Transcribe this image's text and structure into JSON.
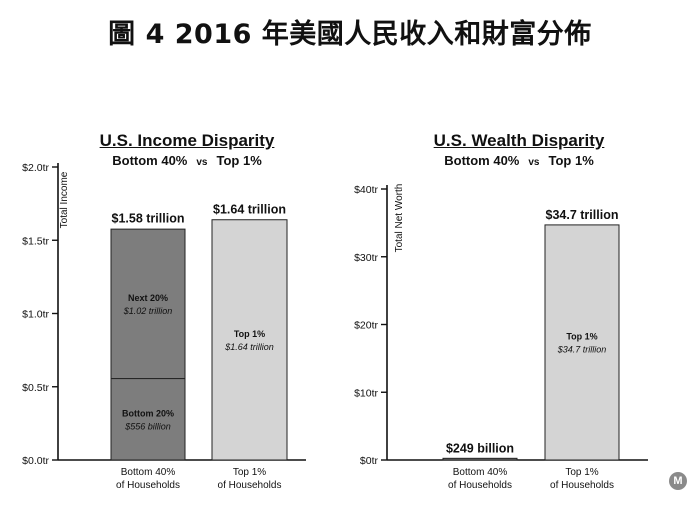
{
  "figure_title": "圖 4   2016 年美國人民收入和財富分佈",
  "logo": "M",
  "colors": {
    "dark_bar": "#7d7d7d",
    "light_bar": "#d4d4d4",
    "axis": "#111111"
  },
  "chart_data": [
    {
      "type": "bar",
      "stacked": true,
      "title": "U.S. Income Disparity",
      "subtitle": {
        "left": "Bottom 40%",
        "vs": "vs",
        "right": "Top 1%"
      },
      "ylabel": "Total Income",
      "ylim": [
        0,
        2.0
      ],
      "yticks": [
        {
          "value": 0,
          "label": "$0.0tr"
        },
        {
          "value": 0.5,
          "label": "$0.5tr"
        },
        {
          "value": 1.0,
          "label": "$1.0tr"
        },
        {
          "value": 1.5,
          "label": "$1.5tr"
        },
        {
          "value": 2.0,
          "label": "$2.0tr"
        }
      ],
      "categories": [
        {
          "line1": "Bottom 40%",
          "line2": "of Households"
        },
        {
          "line1": "Top 1%",
          "line2": "of Households"
        }
      ],
      "bars": [
        {
          "total": 1.58,
          "total_label": "$1.58 trillion",
          "segments": [
            {
              "name": "Bottom 20%",
              "value": 0.556,
              "label": "$556 billion",
              "color": "dark"
            },
            {
              "name": "Next 20%",
              "value": 1.02,
              "label": "$1.02 trillion",
              "color": "dark"
            }
          ]
        },
        {
          "total": 1.64,
          "total_label": "$1.64 trillion",
          "segments": [
            {
              "name": "Top 1%",
              "value": 1.64,
              "label": "$1.64 trillion",
              "color": "light"
            }
          ]
        }
      ]
    },
    {
      "type": "bar",
      "title": "U.S. Wealth Disparity",
      "subtitle": {
        "left": "Bottom 40%",
        "vs": "vs",
        "right": "Top 1%"
      },
      "ylabel": "Total Net Worth",
      "ylim": [
        0,
        40
      ],
      "yticks": [
        {
          "value": 0,
          "label": "$0tr"
        },
        {
          "value": 10,
          "label": "$10tr"
        },
        {
          "value": 20,
          "label": "$20tr"
        },
        {
          "value": 30,
          "label": "$30tr"
        },
        {
          "value": 40,
          "label": "$40tr"
        }
      ],
      "categories": [
        {
          "line1": "Bottom 40%",
          "line2": "of Households"
        },
        {
          "line1": "Top 1%",
          "line2": "of Households"
        }
      ],
      "bars": [
        {
          "total": 0.249,
          "total_label": "$249 billion",
          "segments": [
            {
              "name": "",
              "value": 0.249,
              "label": "",
              "color": "dark"
            }
          ]
        },
        {
          "total": 34.7,
          "total_label": "$34.7 trillion",
          "segments": [
            {
              "name": "Top 1%",
              "value": 34.7,
              "label": "$34.7 trillion",
              "color": "light"
            }
          ]
        }
      ]
    }
  ]
}
